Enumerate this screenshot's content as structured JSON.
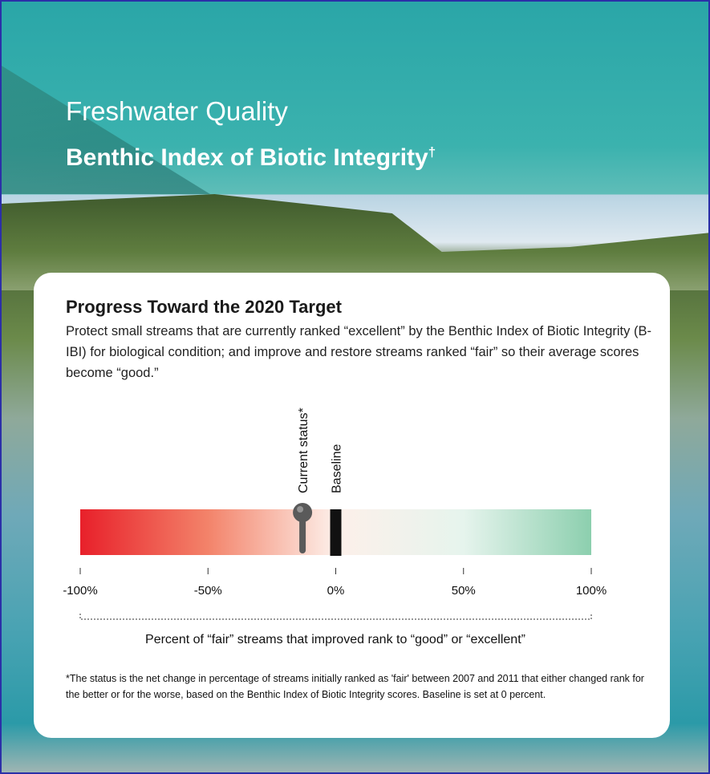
{
  "header": {
    "title": "Freshwater Quality",
    "subtitle": "Benthic Index of Biotic Integrity",
    "subtitle_mark": "†"
  },
  "chart_data": {
    "type": "gauge",
    "title": "Progress Toward the 2020 Target",
    "description": "Protect small streams that are currently ranked “excellent” by the Benthic Index of Biotic Integrity (B-IBI) for biological condition; and improve and restore streams ranked “fair” so their average scores become “good.”",
    "xlabel": "Percent of “fair” streams that improved rank to “good” or “excellent”",
    "xlim": [
      -100,
      100
    ],
    "xticks": [
      {
        "value": -100,
        "label": "-100%"
      },
      {
        "value": -50,
        "label": "-50%"
      },
      {
        "value": 0,
        "label": "0%"
      },
      {
        "value": 50,
        "label": "50%"
      },
      {
        "value": 100,
        "label": "100%"
      }
    ],
    "colors": [
      "#e8202a",
      "#f3836a",
      "#fdf0ea",
      "#e6f4ed",
      "#8ccfae"
    ],
    "markers": [
      {
        "name": "Current status*",
        "value": -13,
        "color": "#5a5a5a",
        "shape": "pin"
      },
      {
        "name": "Baseline",
        "value": 0,
        "color": "#111111",
        "shape": "bar"
      }
    ],
    "footnote": "*The status is the net change in percentage of streams initially ranked as 'fair' between 2007 and 2011 that either changed rank for the better or for the worse, based on the Benthic Index of Biotic Integrity scores. Baseline is set at 0 percent."
  }
}
